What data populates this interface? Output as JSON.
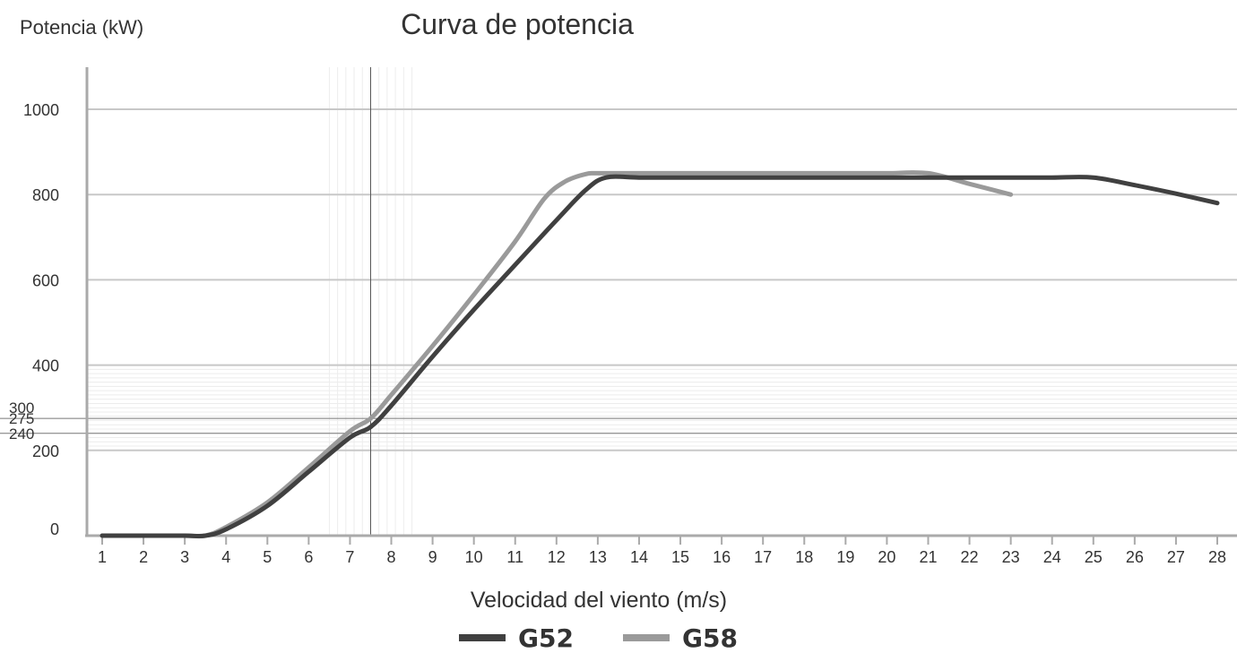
{
  "chart_data": {
    "type": "line",
    "title": "Curva de potencia",
    "ylabel": "Potencia (kW)",
    "xlabel": "Velocidad del viento (m/s)",
    "xlim": [
      1,
      28
    ],
    "ylim": [
      0,
      1000
    ],
    "x_ticks": [
      1,
      2,
      3,
      4,
      5,
      6,
      7,
      8,
      9,
      10,
      11,
      12,
      13,
      14,
      15,
      16,
      17,
      18,
      19,
      20,
      21,
      22,
      23,
      24,
      25,
      26,
      27,
      28
    ],
    "y_ticks_major": [
      0,
      200,
      400,
      600,
      800,
      1000
    ],
    "y_ticks_minor": [
      240,
      275,
      300
    ],
    "y_ref_lines": [
      240,
      275
    ],
    "x_ref_line": 7.5,
    "grid": "horizontal",
    "legend_position": "bottom-center",
    "colors": {
      "G52": "#404040",
      "G58": "#9a9a9a",
      "grid": "#c8c8c8",
      "axis": "#aaaaaa"
    },
    "series": [
      {
        "name": "G52",
        "x": [
          1,
          2,
          3,
          3.5,
          4,
          5,
          6,
          7,
          7.5,
          8,
          9,
          10,
          11,
          12,
          12.7,
          13.2,
          14,
          15,
          16,
          17,
          18,
          19,
          20,
          21,
          22,
          23,
          24,
          25,
          26,
          27,
          28
        ],
        "y": [
          0,
          0,
          0,
          0,
          15,
          70,
          150,
          230,
          255,
          305,
          420,
          530,
          635,
          740,
          810,
          840,
          840,
          840,
          840,
          840,
          840,
          840,
          840,
          840,
          840,
          840,
          840,
          840,
          822,
          802,
          780
        ]
      },
      {
        "name": "G58",
        "x": [
          1,
          2,
          3,
          3.5,
          4,
          5,
          6,
          7,
          7.5,
          8,
          9,
          10,
          11,
          11.7,
          12.2,
          12.7,
          13,
          14,
          15,
          16,
          17,
          18,
          19,
          20,
          21,
          22,
          23
        ],
        "y": [
          0,
          0,
          0,
          0,
          20,
          78,
          160,
          245,
          275,
          330,
          445,
          565,
          690,
          790,
          830,
          848,
          850,
          850,
          850,
          850,
          850,
          850,
          850,
          850,
          850,
          825,
          800
        ]
      }
    ]
  }
}
